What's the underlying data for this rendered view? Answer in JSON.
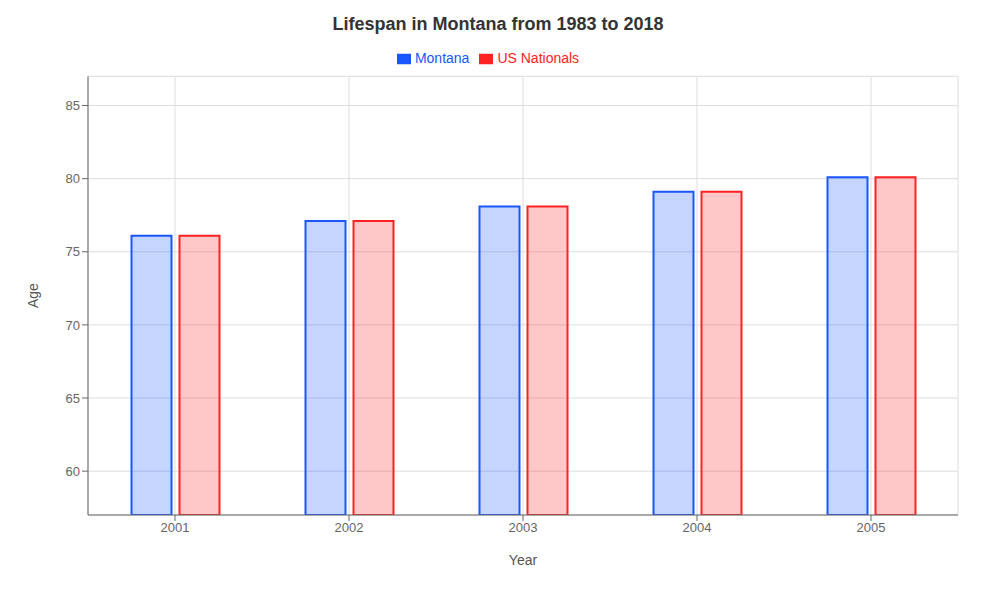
{
  "chart_data": {
    "type": "bar",
    "title": "Lifespan in Montana from 1983 to 2018",
    "x_label": "Year",
    "y_label": "Age",
    "categories": [
      "2001",
      "2002",
      "2003",
      "2004",
      "2005"
    ],
    "series": [
      {
        "name": "Montana",
        "color": "#1a56ff",
        "values": [
          76.1,
          77.1,
          78.1,
          79.1,
          80.1
        ]
      },
      {
        "name": "US Nationals",
        "color": "#ff2222",
        "values": [
          76.1,
          77.1,
          78.1,
          79.1,
          80.1
        ]
      }
    ],
    "ylim": [
      57,
      87
    ],
    "yticks": [
      60,
      65,
      70,
      75,
      80,
      85
    ],
    "grid": true,
    "legend": "top"
  }
}
